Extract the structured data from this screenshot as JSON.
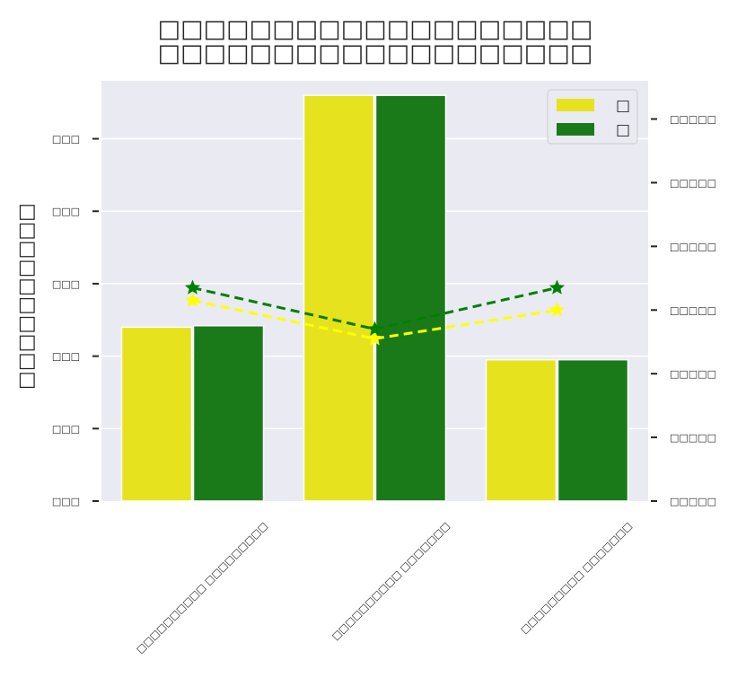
{
  "chart_data": {
    "type": "bar",
    "title_lines": [
      "□□□□□□□□□□□□□□□□□□□",
      "□□□□□□□□□□□□□□□□□□□"
    ],
    "ylabel": "□□□□□□□□□□",
    "categories": [
      "□□□□□□□□□□ □□□□□□□□□",
      "□□□□□□□□□□ □□□□□□□",
      "□□□□□□□□□ □□□□□□□"
    ],
    "ytick_labels": [
      "□□□",
      "□□□",
      "□□□",
      "□□□",
      "□□□",
      "□□□"
    ],
    "ylim": [
      0,
      5.8
    ],
    "series": [
      {
        "name": "□",
        "values": [
          2.4,
          5.6,
          1.95
        ],
        "color": "#e6e21e"
      },
      {
        "name": "□",
        "values": [
          2.42,
          5.6,
          1.95
        ],
        "color": "#1a7a1a"
      }
    ],
    "secondary_axis": {
      "tick_labels": [
        "□□□□□",
        "□□□□□",
        "□□□□□",
        "□□□□□",
        "□□□□□",
        "□□□□□",
        "□□□□□"
      ],
      "ylim": [
        0,
        6.6
      ],
      "series": [
        {
          "values": [
            3.15,
            2.55,
            3.0
          ],
          "color": "#ffff00",
          "line": "dashed",
          "marker": "star"
        },
        {
          "values": [
            3.35,
            2.7,
            3.35
          ],
          "color": "#008000",
          "line": "dashed",
          "marker": "star"
        }
      ]
    },
    "legend_position": "top-right",
    "grid": true
  }
}
